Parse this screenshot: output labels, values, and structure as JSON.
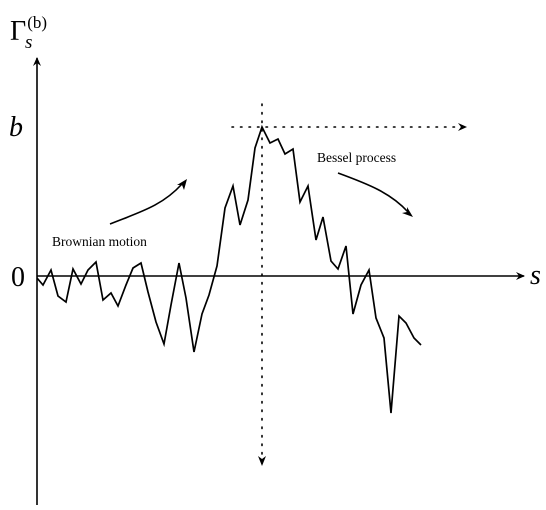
{
  "y_axis_label": {
    "main": "Γ",
    "sub": "s",
    "sup": "(b)"
  },
  "x_axis_label": "s",
  "level_b_label": "b",
  "origin_label": "0",
  "annotations": {
    "brownian": "Brownian motion",
    "bessel": "Bessel process"
  }
}
